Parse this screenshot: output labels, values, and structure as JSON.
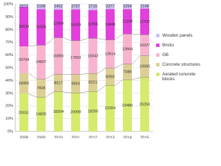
{
  "chart_data": {
    "type": "bar",
    "stacked": "percent",
    "categories": [
      "2008",
      "2009",
      "2010",
      "2011",
      "2012",
      "2013",
      "2014",
      "2015"
    ],
    "series": [
      {
        "name": "Aerated concrete blocks",
        "color": "#d6ea6e",
        "values": [
          29151,
          14835,
          18204,
          20098,
          18250,
          22204,
          23480,
          26250
        ]
      },
      {
        "name": "Concrete structures",
        "color": "#ddcf93",
        "values": [
          16060,
          7828,
          8017,
          9563,
          8221,
          8369,
          7086,
          10565
        ]
      },
      {
        "name": "GB",
        "color": "#f8b4cf",
        "values": [
          20794,
          14607,
          16855,
          17659,
          16043,
          13614,
          13664,
          10227
        ]
      },
      {
        "name": "Bricks",
        "color": "#e23fdc",
        "values": [
          30639,
          15565,
          12968,
          16309,
          12905,
          14849,
          11338,
          12702
        ]
      },
      {
        "name": "Wooden panels",
        "color": "#c9c3ee",
        "values": [
          2073,
          2158,
          2452,
          2737,
          2715,
          2377,
          2264,
          2148
        ]
      }
    ],
    "ylim": [
      0,
      100
    ],
    "yticks": [
      {
        "value": 0,
        "label": "0%"
      },
      {
        "value": 10,
        "label": "10%"
      },
      {
        "value": 20,
        "label": "20%"
      },
      {
        "value": 30,
        "label": "30%"
      },
      {
        "value": 40,
        "label": "40%"
      },
      {
        "value": 50,
        "label": "50%"
      },
      {
        "value": 60,
        "label": "60%"
      },
      {
        "value": 70,
        "label": "70%"
      },
      {
        "value": 80,
        "label": "80%"
      },
      {
        "value": 90,
        "label": "90%"
      },
      {
        "value": 100,
        "label": "100%"
      }
    ],
    "grid": true,
    "legend": "right"
  }
}
